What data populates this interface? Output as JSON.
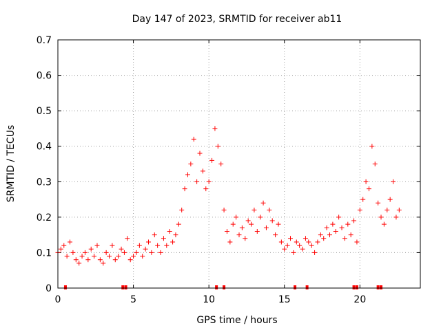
{
  "chart_data": {
    "type": "scatter",
    "title": "Day 147 of 2023, SRMTID for receiver ab11",
    "xlabel": "GPS time / hours",
    "ylabel": "SRMTID / TECUs",
    "xlim": [
      0,
      24
    ],
    "ylim": [
      0,
      0.7
    ],
    "x_ticks": [
      0,
      5,
      10,
      15,
      20
    ],
    "x_tick_labels": [
      "0",
      "5",
      "10",
      "15",
      "20"
    ],
    "y_ticks": [
      0,
      0.1,
      0.2,
      0.3,
      0.4,
      0.5,
      0.6,
      0.7
    ],
    "y_tick_labels": [
      "0",
      "0.1",
      "0.2",
      "0.3",
      "0.4",
      "0.5",
      "0.6",
      "0.7"
    ],
    "grid": true,
    "marker": "+",
    "color": "#ff0000",
    "series": [
      {
        "name": "SRMTID",
        "x": [
          0.0,
          0.2,
          0.4,
          0.6,
          0.8,
          1.0,
          1.2,
          1.4,
          1.6,
          1.8,
          2.0,
          2.2,
          2.4,
          2.6,
          2.8,
          3.0,
          3.2,
          3.4,
          3.6,
          3.8,
          4.0,
          4.2,
          4.4,
          4.6,
          4.8,
          5.0,
          5.2,
          5.4,
          5.6,
          5.8,
          6.0,
          6.2,
          6.4,
          6.6,
          6.8,
          7.0,
          7.2,
          7.4,
          7.6,
          7.8,
          8.0,
          8.2,
          8.4,
          8.6,
          8.8,
          9.0,
          9.2,
          9.4,
          9.6,
          9.8,
          10.0,
          10.2,
          10.4,
          10.6,
          10.8,
          11.0,
          11.2,
          11.4,
          11.6,
          11.8,
          12.0,
          12.2,
          12.4,
          12.6,
          12.8,
          13.0,
          13.2,
          13.4,
          13.6,
          13.8,
          14.0,
          14.2,
          14.4,
          14.6,
          14.8,
          15.0,
          15.2,
          15.4,
          15.6,
          15.8,
          16.0,
          16.2,
          16.4,
          16.6,
          16.8,
          17.0,
          17.2,
          17.4,
          17.6,
          17.8,
          18.0,
          18.2,
          18.4,
          18.6,
          18.8,
          19.0,
          19.2,
          19.4,
          19.6,
          19.8,
          20.0,
          20.2,
          20.4,
          20.6,
          20.8,
          21.0,
          21.2,
          21.4,
          21.6,
          21.8,
          22.0,
          22.2,
          22.4,
          22.6
        ],
        "y": [
          0.1,
          0.11,
          0.12,
          0.09,
          0.13,
          0.1,
          0.08,
          0.07,
          0.09,
          0.1,
          0.08,
          0.11,
          0.09,
          0.12,
          0.08,
          0.07,
          0.1,
          0.09,
          0.12,
          0.08,
          0.09,
          0.11,
          0.1,
          0.14,
          0.08,
          0.09,
          0.1,
          0.12,
          0.09,
          0.11,
          0.13,
          0.1,
          0.15,
          0.12,
          0.1,
          0.14,
          0.12,
          0.16,
          0.13,
          0.15,
          0.18,
          0.22,
          0.28,
          0.32,
          0.35,
          0.42,
          0.3,
          0.38,
          0.33,
          0.28,
          0.3,
          0.36,
          0.45,
          0.4,
          0.35,
          0.22,
          0.16,
          0.13,
          0.18,
          0.2,
          0.15,
          0.17,
          0.14,
          0.19,
          0.18,
          0.22,
          0.16,
          0.2,
          0.24,
          0.17,
          0.22,
          0.19,
          0.15,
          0.18,
          0.13,
          0.11,
          0.12,
          0.14,
          0.1,
          0.13,
          0.12,
          0.11,
          0.14,
          0.13,
          0.12,
          0.1,
          0.13,
          0.15,
          0.14,
          0.17,
          0.15,
          0.18,
          0.16,
          0.2,
          0.17,
          0.14,
          0.18,
          0.15,
          0.19,
          0.13,
          0.22,
          0.25,
          0.3,
          0.28,
          0.4,
          0.35,
          0.24,
          0.2,
          0.18,
          0.22,
          0.25,
          0.3,
          0.2,
          0.22
        ]
      }
    ],
    "gap_markers_x": [
      0.5,
      4.3,
      4.5,
      10.5,
      11.0,
      15.7,
      16.5,
      19.6,
      19.8,
      21.2,
      21.4
    ]
  }
}
